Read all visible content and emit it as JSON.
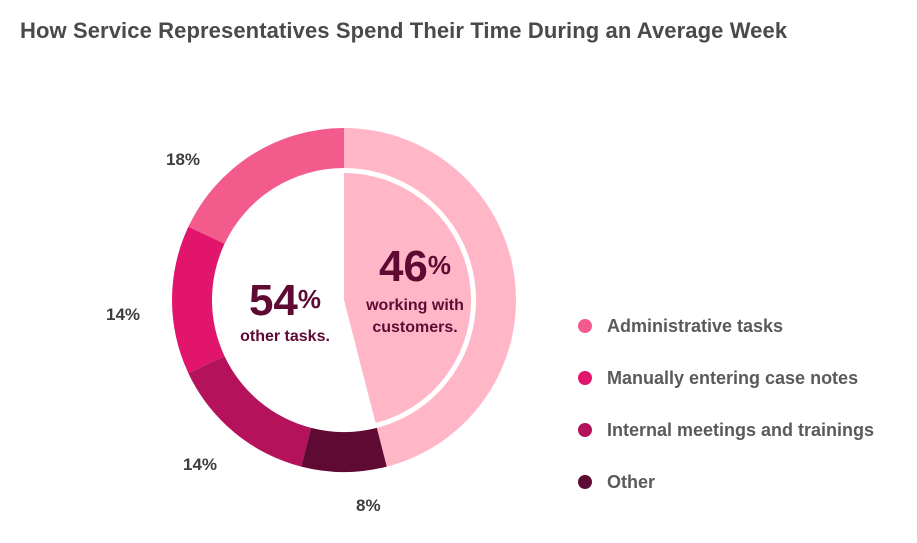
{
  "title": "How Service Representatives Spend Their Time During an Average Week",
  "chart_data": {
    "type": "pie",
    "title": "How Service Representatives Spend Their Time During an Average Week",
    "outer_ring": [
      {
        "name": "Administrative tasks",
        "value": 18,
        "label": "18%",
        "color": "#f45b8d"
      },
      {
        "name": "Manually entering case notes",
        "value": 14,
        "label": "14%",
        "color": "#e2156d"
      },
      {
        "name": "Internal meetings and trainings",
        "value": 14,
        "label": "14%",
        "color": "#b4125a"
      },
      {
        "name": "Other",
        "value": 8,
        "label": "8%",
        "color": "#5e0a33"
      }
    ],
    "working_segment": {
      "value": 46,
      "color": "#ffb7c8"
    },
    "other_tasks_total": {
      "value": 54
    }
  },
  "center": {
    "left_value": "54",
    "left_pct": "%",
    "left_text": "other tasks.",
    "right_value": "46",
    "right_pct": "%",
    "right_line1": "working with",
    "right_line2": "customers."
  },
  "legend": [
    {
      "label": "Administrative tasks",
      "color": "#f45b8d"
    },
    {
      "label": "Manually entering case notes",
      "color": "#e2156d"
    },
    {
      "label": "Internal meetings and trainings",
      "color": "#b4125a"
    },
    {
      "label": "Other",
      "color": "#5e0a33"
    }
  ]
}
